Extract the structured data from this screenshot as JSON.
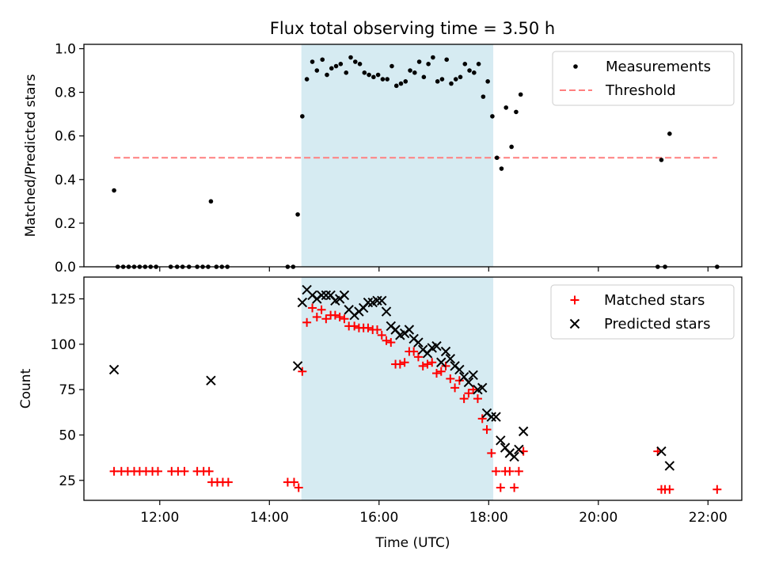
{
  "title": "Flux total observing time = 3.50 h",
  "colors": {
    "shade": "#add8e6",
    "threshold": "#ff7f7f",
    "measure": "#000000",
    "matched": "#ff0000",
    "predicted": "#000000"
  },
  "chart_data": [
    {
      "type": "scatter",
      "panel": "top",
      "ylabel": "Matched/Predicted stars",
      "xlabel": "",
      "xlim": [
        "10:37",
        "22:37"
      ],
      "ylim": [
        0,
        1.02
      ],
      "yticks": [
        "0.0",
        "0.2",
        "0.4",
        "0.6",
        "0.8",
        "1.0"
      ],
      "grid": false,
      "legend": {
        "placement": "top-right",
        "entries": [
          "Measurements",
          "Threshold"
        ]
      },
      "shaded_interval": [
        "14:35",
        "18:05"
      ],
      "series": [
        {
          "name": "Measurements",
          "points": [
            [
              "11:10",
              0.35
            ],
            [
              "11:14",
              0.0
            ],
            [
              "11:20",
              0.0
            ],
            [
              "11:26",
              0.0
            ],
            [
              "11:32",
              0.0
            ],
            [
              "11:38",
              0.0
            ],
            [
              "11:44",
              0.0
            ],
            [
              "11:50",
              0.0
            ],
            [
              "11:56",
              0.0
            ],
            [
              "12:12",
              0.0
            ],
            [
              "12:19",
              0.0
            ],
            [
              "12:25",
              0.0
            ],
            [
              "12:32",
              0.0
            ],
            [
              "12:41",
              0.0
            ],
            [
              "12:47",
              0.0
            ],
            [
              "12:53",
              0.0
            ],
            [
              "12:56",
              0.3
            ],
            [
              "13:02",
              0.0
            ],
            [
              "13:08",
              0.0
            ],
            [
              "13:14",
              0.0
            ],
            [
              "14:20",
              0.0
            ],
            [
              "14:26",
              0.0
            ],
            [
              "14:31",
              0.24
            ],
            [
              "14:36",
              0.69
            ],
            [
              "14:41",
              0.86
            ],
            [
              "14:47",
              0.94
            ],
            [
              "14:52",
              0.9
            ],
            [
              "14:58",
              0.95
            ],
            [
              "15:03",
              0.88
            ],
            [
              "15:08",
              0.91
            ],
            [
              "15:13",
              0.92
            ],
            [
              "15:18",
              0.93
            ],
            [
              "15:24",
              0.89
            ],
            [
              "15:29",
              0.96
            ],
            [
              "15:34",
              0.94
            ],
            [
              "15:39",
              0.93
            ],
            [
              "15:44",
              0.89
            ],
            [
              "15:49",
              0.88
            ],
            [
              "15:54",
              0.87
            ],
            [
              "15:59",
              0.88
            ],
            [
              "16:04",
              0.86
            ],
            [
              "16:09",
              0.86
            ],
            [
              "16:14",
              0.92
            ],
            [
              "16:19",
              0.83
            ],
            [
              "16:24",
              0.84
            ],
            [
              "16:29",
              0.85
            ],
            [
              "16:34",
              0.9
            ],
            [
              "16:39",
              0.89
            ],
            [
              "16:44",
              0.94
            ],
            [
              "16:49",
              0.87
            ],
            [
              "16:54",
              0.93
            ],
            [
              "16:59",
              0.96
            ],
            [
              "17:04",
              0.85
            ],
            [
              "17:09",
              0.86
            ],
            [
              "17:14",
              0.95
            ],
            [
              "17:19",
              0.84
            ],
            [
              "17:24",
              0.86
            ],
            [
              "17:29",
              0.87
            ],
            [
              "17:34",
              0.93
            ],
            [
              "17:39",
              0.9
            ],
            [
              "17:44",
              0.89
            ],
            [
              "17:49",
              0.93
            ],
            [
              "17:54",
              0.78
            ],
            [
              "17:59",
              0.85
            ],
            [
              "18:04",
              0.69
            ],
            [
              "18:09",
              0.5
            ],
            [
              "18:14",
              0.45
            ],
            [
              "18:19",
              0.73
            ],
            [
              "18:25",
              0.55
            ],
            [
              "18:30",
              0.71
            ],
            [
              "18:35",
              0.79
            ],
            [
              "21:05",
              0.0
            ],
            [
              "21:09",
              0.49
            ],
            [
              "21:13",
              0.0
            ],
            [
              "21:18",
              0.61
            ],
            [
              "22:10",
              0.0
            ]
          ]
        },
        {
          "name": "Threshold",
          "y": 0.5,
          "x": [
            "11:10",
            "22:10"
          ]
        }
      ]
    },
    {
      "type": "scatter",
      "panel": "bottom",
      "xlabel": "Time (UTC)",
      "ylabel": "Count",
      "xlim": [
        "10:37",
        "22:37"
      ],
      "ylim": [
        14,
        137
      ],
      "xticks": [
        "12:00",
        "14:00",
        "16:00",
        "18:00",
        "20:00",
        "22:00"
      ],
      "yticks": [
        "25",
        "50",
        "75",
        "100",
        "125"
      ],
      "grid": false,
      "legend": {
        "placement": "top-right",
        "entries": [
          "Matched stars",
          "Predicted stars"
        ]
      },
      "shaded_interval": [
        "14:35",
        "18:05"
      ],
      "series": [
        {
          "name": "Matched stars",
          "points": [
            [
              "11:10",
              30
            ],
            [
              "11:18",
              30
            ],
            [
              "11:25",
              30
            ],
            [
              "11:32",
              30
            ],
            [
              "11:38",
              30
            ],
            [
              "11:45",
              30
            ],
            [
              "11:52",
              30
            ],
            [
              "11:58",
              30
            ],
            [
              "12:13",
              30
            ],
            [
              "12:20",
              30
            ],
            [
              "12:27",
              30
            ],
            [
              "12:41",
              30
            ],
            [
              "12:48",
              30
            ],
            [
              "12:54",
              30
            ],
            [
              "12:57",
              24
            ],
            [
              "13:03",
              24
            ],
            [
              "13:09",
              24
            ],
            [
              "13:15",
              24
            ],
            [
              "14:20",
              24
            ],
            [
              "14:27",
              24
            ],
            [
              "14:32",
              21
            ],
            [
              "14:36",
              85
            ],
            [
              "14:41",
              112
            ],
            [
              "14:47",
              120
            ],
            [
              "14:52",
              115
            ],
            [
              "14:57",
              119
            ],
            [
              "15:02",
              114
            ],
            [
              "15:07",
              116
            ],
            [
              "15:12",
              116
            ],
            [
              "15:17",
              115
            ],
            [
              "15:22",
              114
            ],
            [
              "15:27",
              110
            ],
            [
              "15:33",
              110
            ],
            [
              "15:38",
              109
            ],
            [
              "15:43",
              109
            ],
            [
              "15:48",
              109
            ],
            [
              "15:53",
              108
            ],
            [
              "15:58",
              108
            ],
            [
              "16:03",
              105
            ],
            [
              "16:08",
              102
            ],
            [
              "16:13",
              101
            ],
            [
              "16:18",
              89
            ],
            [
              "16:23",
              89
            ],
            [
              "16:28",
              90
            ],
            [
              "16:33",
              96
            ],
            [
              "16:38",
              96
            ],
            [
              "16:43",
              93
            ],
            [
              "16:48",
              88
            ],
            [
              "16:53",
              89
            ],
            [
              "16:58",
              90
            ],
            [
              "17:03",
              84
            ],
            [
              "17:08",
              85
            ],
            [
              "17:13",
              88
            ],
            [
              "17:18",
              81
            ],
            [
              "17:23",
              76
            ],
            [
              "17:28",
              80
            ],
            [
              "17:33",
              70
            ],
            [
              "17:38",
              73
            ],
            [
              "17:43",
              75
            ],
            [
              "17:48",
              70
            ],
            [
              "17:53",
              59
            ],
            [
              "17:58",
              53
            ],
            [
              "18:03",
              40
            ],
            [
              "18:08",
              30
            ],
            [
              "18:13",
              21
            ],
            [
              "18:18",
              30
            ],
            [
              "18:23",
              30
            ],
            [
              "18:28",
              21
            ],
            [
              "18:33",
              30
            ],
            [
              "18:38",
              41
            ],
            [
              "21:05",
              41
            ],
            [
              "21:09",
              20
            ],
            [
              "21:13",
              20
            ],
            [
              "21:18",
              20
            ],
            [
              "22:10",
              20
            ]
          ]
        },
        {
          "name": "Predicted stars",
          "points": [
            [
              "11:10",
              86
            ],
            [
              "12:56",
              80
            ],
            [
              "14:31",
              88
            ],
            [
              "14:36",
              123
            ],
            [
              "14:41",
              130
            ],
            [
              "14:47",
              127
            ],
            [
              "14:52",
              125
            ],
            [
              "14:57",
              127
            ],
            [
              "15:02",
              127
            ],
            [
              "15:07",
              127
            ],
            [
              "15:12",
              124
            ],
            [
              "15:17",
              125
            ],
            [
              "15:22",
              127
            ],
            [
              "15:27",
              119
            ],
            [
              "15:33",
              116
            ],
            [
              "15:38",
              118
            ],
            [
              "15:43",
              120
            ],
            [
              "15:48",
              123
            ],
            [
              "15:53",
              123
            ],
            [
              "15:58",
              124
            ],
            [
              "16:03",
              124
            ],
            [
              "16:08",
              118
            ],
            [
              "16:13",
              110
            ],
            [
              "16:18",
              108
            ],
            [
              "16:23",
              105
            ],
            [
              "16:28",
              106
            ],
            [
              "16:33",
              108
            ],
            [
              "16:38",
              103
            ],
            [
              "16:43",
              101
            ],
            [
              "16:48",
              97
            ],
            [
              "16:53",
              95
            ],
            [
              "16:58",
              98
            ],
            [
              "17:03",
              99
            ],
            [
              "17:08",
              90
            ],
            [
              "17:13",
              96
            ],
            [
              "17:18",
              92
            ],
            [
              "17:23",
              88
            ],
            [
              "17:28",
              86
            ],
            [
              "17:33",
              82
            ],
            [
              "17:38",
              79
            ],
            [
              "17:43",
              83
            ],
            [
              "17:48",
              75
            ],
            [
              "17:53",
              76
            ],
            [
              "17:58",
              62
            ],
            [
              "18:03",
              60
            ],
            [
              "18:08",
              60
            ],
            [
              "18:13",
              47
            ],
            [
              "18:18",
              43
            ],
            [
              "18:23",
              40
            ],
            [
              "18:28",
              38
            ],
            [
              "18:33",
              42
            ],
            [
              "18:38",
              52
            ],
            [
              "21:09",
              41
            ],
            [
              "21:18",
              33
            ]
          ]
        }
      ]
    }
  ]
}
